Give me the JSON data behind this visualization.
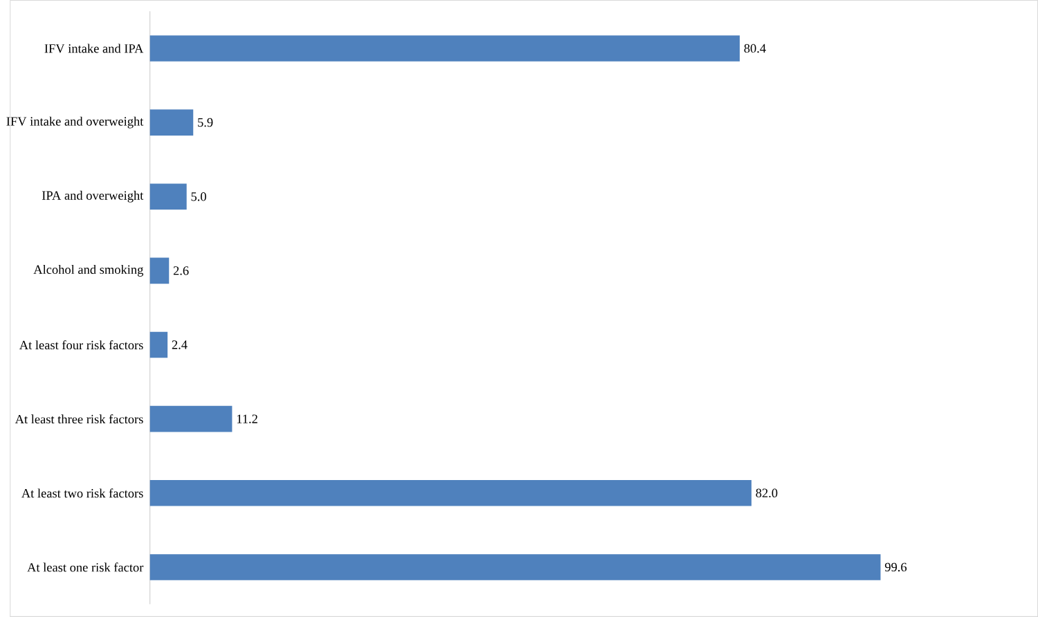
{
  "chart_data": {
    "type": "bar",
    "orientation": "horizontal",
    "categories": [
      "IFV intake and IPA",
      "IFV intake and overweight",
      "IPA and overweight",
      "Alcohol and smoking",
      "At least four risk factors",
      "At least three risk factors",
      "At least two risk factors",
      "At least one risk factor"
    ],
    "values": [
      80.4,
      5.9,
      5.0,
      2.6,
      2.4,
      11.2,
      82.0,
      99.6
    ],
    "value_labels": [
      "80.4",
      "5.9",
      "5.0",
      "2.6",
      "2.4",
      "11.2",
      "82.0",
      "99.6"
    ],
    "color": "#4f81bd"
  }
}
